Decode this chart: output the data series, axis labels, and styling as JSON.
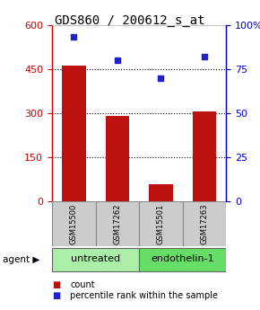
{
  "title": "GDS860 / 200612_s_at",
  "samples": [
    "GSM15500",
    "GSM17262",
    "GSM15501",
    "GSM17263"
  ],
  "counts": [
    460,
    290,
    60,
    305
  ],
  "percentiles": [
    93,
    80,
    70,
    82
  ],
  "ylim_left": [
    0,
    600
  ],
  "ylim_right": [
    0,
    100
  ],
  "yticks_left": [
    0,
    150,
    300,
    450,
    600
  ],
  "yticks_right": [
    0,
    25,
    50,
    75,
    100
  ],
  "bar_color": "#bb1111",
  "dot_color": "#2222cc",
  "bar_width": 0.55,
  "groups": [
    {
      "label": "untreated",
      "samples": [
        0,
        1
      ],
      "color": "#aaeea8"
    },
    {
      "label": "endothelin-1",
      "samples": [
        2,
        3
      ],
      "color": "#66dd66"
    }
  ],
  "agent_label": "agent",
  "legend_count_label": "count",
  "legend_pct_label": "percentile rank within the sample",
  "title_fontsize": 10,
  "axis_label_color_left": "#cc0000",
  "axis_label_color_right": "#0000cc",
  "bg_color": "#ffffff",
  "box_color": "#cccccc",
  "grid_color": "#000000",
  "tick_fontsize": 8,
  "sample_fontsize": 6,
  "group_fontsize": 8
}
